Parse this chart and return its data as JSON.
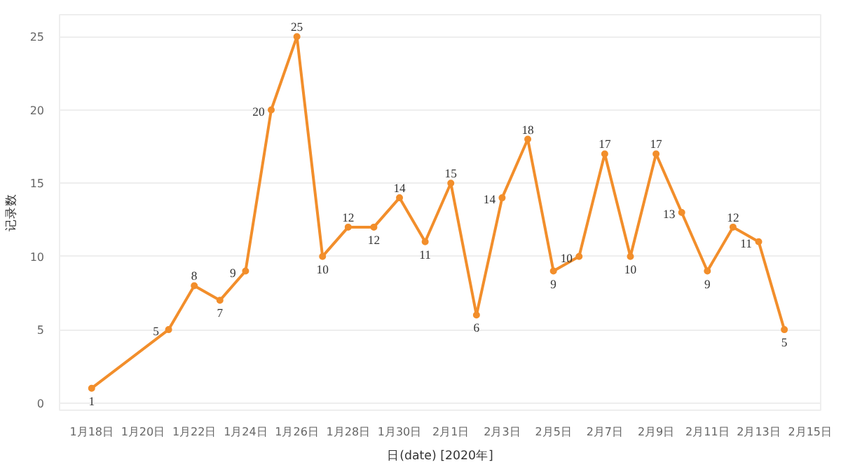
{
  "chart_data": {
    "type": "line",
    "xlabel": "日(date) [2020年]",
    "ylabel": "记录数",
    "x": [
      "2020-01-18",
      "2020-01-21",
      "2020-01-22",
      "2020-01-23",
      "2020-01-24",
      "2020-01-25",
      "2020-01-26",
      "2020-01-27",
      "2020-01-28",
      "2020-01-29",
      "2020-01-30",
      "2020-01-31",
      "2020-02-01",
      "2020-02-02",
      "2020-02-03",
      "2020-02-04",
      "2020-02-05",
      "2020-02-06",
      "2020-02-07",
      "2020-02-08",
      "2020-02-09",
      "2020-02-10",
      "2020-02-11",
      "2020-02-12",
      "2020-02-13",
      "2020-02-14"
    ],
    "series": [
      {
        "color": "#f28e2b",
        "values": [
          1,
          5,
          8,
          7,
          9,
          20,
          25,
          10,
          12,
          12,
          14,
          11,
          15,
          6,
          14,
          18,
          9,
          10,
          17,
          10,
          17,
          13,
          9,
          12,
          11,
          5
        ]
      }
    ],
    "xlim": [
      "2020-01-16T18:00",
      "2020-02-15T10:00"
    ],
    "xticks": [
      {
        "value": "2020-01-18",
        "label": "1月18日"
      },
      {
        "value": "2020-01-20",
        "label": "1月20日"
      },
      {
        "value": "2020-01-22",
        "label": "1月22日"
      },
      {
        "value": "2020-01-24",
        "label": "1月24日"
      },
      {
        "value": "2020-01-26",
        "label": "1月26日"
      },
      {
        "value": "2020-01-28",
        "label": "1月28日"
      },
      {
        "value": "2020-01-30",
        "label": "1月30日"
      },
      {
        "value": "2020-02-01",
        "label": "2月1日"
      },
      {
        "value": "2020-02-03",
        "label": "2月3日"
      },
      {
        "value": "2020-02-05",
        "label": "2月5日"
      },
      {
        "value": "2020-02-07",
        "label": "2月7日"
      },
      {
        "value": "2020-02-09",
        "label": "2月9日"
      },
      {
        "value": "2020-02-11",
        "label": "2月11日"
      },
      {
        "value": "2020-02-13",
        "label": "2月13日"
      },
      {
        "value": "2020-02-15",
        "label": "2月15日"
      }
    ],
    "ylim": [
      -0.5,
      26.5
    ],
    "yticks": [
      0,
      5,
      10,
      15,
      20,
      25
    ],
    "grid": "y",
    "marker": "circle",
    "line_style": "solid",
    "data_labels": true
  }
}
